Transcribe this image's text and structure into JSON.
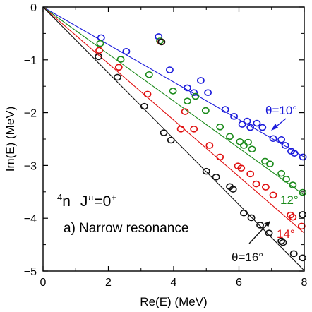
{
  "chart_data": {
    "type": "scatter",
    "xlabel": "Re(E) (MeV)",
    "ylabel": "Im(E) (MeV)",
    "xlim": [
      0,
      8
    ],
    "ylim": [
      -5,
      0
    ],
    "xticks": [
      0,
      2,
      4,
      6,
      8
    ],
    "yticks": [
      0,
      -1,
      -2,
      -3,
      -4,
      -5
    ],
    "xtick_labels": [
      "0",
      "2",
      "4",
      "6",
      "8"
    ],
    "ytick_labels": [
      "0",
      "−1",
      "−2",
      "−3",
      "−4",
      "−5"
    ],
    "grid": false,
    "series": [
      {
        "name": "θ=10°",
        "color": "#1a1adb",
        "line": [
          [
            0,
            0
          ],
          [
            8,
            -2.84
          ]
        ],
        "points": [
          [
            1.78,
            -0.58
          ],
          [
            2.55,
            -0.84
          ],
          [
            3.54,
            -0.56
          ],
          [
            3.88,
            -1.19
          ],
          [
            4.42,
            -1.53
          ],
          [
            4.62,
            -1.62
          ],
          [
            4.83,
            -1.39
          ],
          [
            5.05,
            -1.62
          ],
          [
            5.58,
            -1.94
          ],
          [
            5.85,
            -2.07
          ],
          [
            6.1,
            -2.22
          ],
          [
            6.25,
            -2.16
          ],
          [
            6.35,
            -2.28
          ],
          [
            6.55,
            -2.2
          ],
          [
            6.72,
            -2.28
          ],
          [
            7.05,
            -2.49
          ],
          [
            7.3,
            -2.51
          ],
          [
            7.42,
            -2.62
          ],
          [
            7.6,
            -2.73
          ],
          [
            7.7,
            -2.77
          ],
          [
            7.96,
            -2.84
          ]
        ]
      },
      {
        "name": "12°",
        "color": "#1a8a1a",
        "line": [
          [
            0,
            0
          ],
          [
            8,
            -3.56
          ]
        ],
        "points": [
          [
            1.75,
            -0.69
          ],
          [
            2.38,
            -0.99
          ],
          [
            3.58,
            -0.64
          ],
          [
            3.25,
            -1.28
          ],
          [
            3.98,
            -1.59
          ],
          [
            4.42,
            -1.78
          ],
          [
            4.67,
            -1.69
          ],
          [
            4.98,
            -1.96
          ],
          [
            5.42,
            -2.27
          ],
          [
            5.72,
            -2.45
          ],
          [
            6.03,
            -2.55
          ],
          [
            6.15,
            -2.62
          ],
          [
            6.28,
            -2.56
          ],
          [
            6.4,
            -2.69
          ],
          [
            6.8,
            -2.92
          ],
          [
            6.95,
            -2.97
          ],
          [
            7.3,
            -3.15
          ],
          [
            7.45,
            -3.26
          ],
          [
            7.65,
            -3.37
          ],
          [
            7.95,
            -3.51
          ]
        ]
      },
      {
        "name": "14°",
        "color": "#e01010",
        "line": [
          [
            0,
            0
          ],
          [
            8,
            -4.28
          ]
        ],
        "points": [
          [
            1.72,
            -0.82
          ],
          [
            2.32,
            -1.14
          ],
          [
            3.62,
            -0.66
          ],
          [
            3.2,
            -1.65
          ],
          [
            4.35,
            -1.98
          ],
          [
            4.22,
            -2.31
          ],
          [
            4.62,
            -2.31
          ],
          [
            5.1,
            -2.62
          ],
          [
            5.42,
            -2.84
          ],
          [
            5.97,
            -3.01
          ],
          [
            6.07,
            -3.05
          ],
          [
            6.35,
            -3.16
          ],
          [
            6.53,
            -3.35
          ],
          [
            6.82,
            -3.41
          ],
          [
            7.05,
            -3.56
          ],
          [
            7.58,
            -3.94
          ],
          [
            7.65,
            -3.98
          ],
          [
            7.92,
            -4.15
          ]
        ]
      },
      {
        "name": "θ=16°",
        "color": "#111111",
        "line": [
          [
            0,
            0
          ],
          [
            8,
            -4.99
          ]
        ],
        "points": [
          [
            1.7,
            -0.94
          ],
          [
            2.28,
            -1.33
          ],
          [
            3.63,
            -0.66
          ],
          [
            3.1,
            -1.88
          ],
          [
            3.7,
            -2.38
          ],
          [
            3.92,
            -2.52
          ],
          [
            5.0,
            -3.11
          ],
          [
            5.3,
            -3.22
          ],
          [
            5.72,
            -3.4
          ],
          [
            5.82,
            -3.45
          ],
          [
            6.15,
            -3.9
          ],
          [
            6.38,
            -3.99
          ],
          [
            6.65,
            -4.13
          ],
          [
            6.92,
            -4.28
          ],
          [
            7.3,
            -4.43
          ],
          [
            7.35,
            -4.46
          ],
          [
            7.68,
            -4.67
          ],
          [
            7.95,
            -3.93
          ],
          [
            7.95,
            -4.75
          ]
        ]
      }
    ],
    "annotations": {
      "title_nucleus_mass": "4",
      "title_nucleus": "n",
      "title_j": "J",
      "title_pi": "π",
      "title_eq": "=0",
      "title_plus": "+",
      "subtitle": "a) Narrow resonance"
    }
  }
}
